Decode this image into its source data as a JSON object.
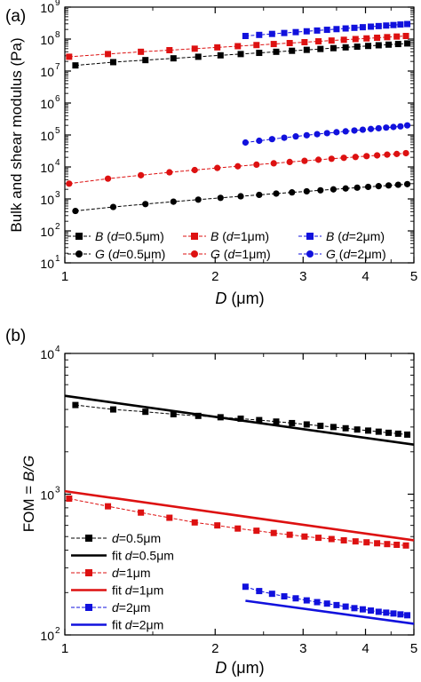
{
  "chart_data": [
    {
      "type": "scatter",
      "panel_label": "(a)",
      "xlabel": "D (μm)",
      "ylabel": "Bulk and shear modulus (Pa)",
      "xscale": "log",
      "yscale": "log",
      "xlim": [
        1,
        5
      ],
      "ylim": [
        10,
        1000000000
      ],
      "xticks": [
        1,
        2,
        3,
        4,
        5
      ],
      "xtick_labels": [
        "1",
        "2",
        "3",
        "4",
        "5"
      ],
      "yticks": [
        10,
        100,
        1000,
        10000,
        100000,
        1000000,
        10000000,
        100000000,
        1000000000
      ],
      "ytick_labels": [
        "10",
        "10",
        "10",
        "10",
        "10",
        "10",
        "10",
        "10",
        "10"
      ],
      "ytick_exponents": [
        "1",
        "2",
        "3",
        "4",
        "5",
        "6",
        "7",
        "8",
        "9"
      ],
      "grid": false,
      "legend_position": "bottom",
      "series": [
        {
          "name": "B (d=0.5μm)",
          "color": "#000000",
          "marker": "square",
          "x": [
            1.05,
            1.25,
            1.45,
            1.65,
            1.85,
            2.05,
            2.25,
            2.45,
            2.65,
            2.85,
            3.05,
            3.25,
            3.45,
            3.65,
            3.85,
            4.05,
            4.25,
            4.45,
            4.65,
            4.85
          ],
          "y": [
            15000000,
            19000000,
            22000000,
            25000000,
            28000000,
            31000000,
            34000000,
            37000000,
            40000000,
            43000000,
            46000000,
            49000000,
            52000000,
            55000000,
            58000000,
            61000000,
            64000000,
            67000000,
            70000000,
            73000000
          ]
        },
        {
          "name": "B (d=1μm)",
          "color": "#dd1111",
          "marker": "square",
          "x": [
            1.02,
            1.22,
            1.42,
            1.62,
            1.82,
            2.02,
            2.22,
            2.42,
            2.62,
            2.82,
            3.02,
            3.22,
            3.42,
            3.62,
            3.82,
            4.02,
            4.22,
            4.42,
            4.62,
            4.82
          ],
          "y": [
            28000000,
            34000000,
            40000000,
            45000000,
            50000000,
            55000000,
            60000000,
            65000000,
            70000000,
            75000000,
            80000000,
            85000000,
            90000000,
            95000000,
            100000000,
            105000000,
            110000000,
            115000000,
            120000000,
            125000000
          ]
        },
        {
          "name": "B (d=2μm)",
          "color": "#1111dd",
          "marker": "square",
          "x": [
            2.3,
            2.45,
            2.6,
            2.75,
            2.9,
            3.05,
            3.2,
            3.35,
            3.5,
            3.65,
            3.8,
            3.95,
            4.1,
            4.25,
            4.4,
            4.55,
            4.7,
            4.85
          ],
          "y": [
            125000000,
            135000000,
            145000000,
            155000000,
            165000000,
            175000000,
            185000000,
            195000000,
            205000000,
            215000000,
            225000000,
            235000000,
            245000000,
            255000000,
            265000000,
            275000000,
            285000000,
            295000000
          ]
        },
        {
          "name": "G (d=0.5μm)",
          "color": "#000000",
          "marker": "circle",
          "x": [
            1.05,
            1.25,
            1.45,
            1.65,
            1.85,
            2.05,
            2.25,
            2.45,
            2.65,
            2.85,
            3.05,
            3.25,
            3.45,
            3.65,
            3.85,
            4.05,
            4.25,
            4.45,
            4.65,
            4.85
          ],
          "y": [
            420,
            560,
            690,
            820,
            950,
            1080,
            1210,
            1340,
            1470,
            1600,
            1730,
            1860,
            1990,
            2120,
            2250,
            2380,
            2510,
            2640,
            2770,
            2900
          ]
        },
        {
          "name": "G (d=1μm)",
          "color": "#dd1111",
          "marker": "circle",
          "x": [
            1.02,
            1.22,
            1.42,
            1.62,
            1.82,
            2.02,
            2.22,
            2.42,
            2.62,
            2.82,
            3.02,
            3.22,
            3.42,
            3.62,
            3.82,
            4.02,
            4.22,
            4.42,
            4.62,
            4.82
          ],
          "y": [
            3000,
            4300,
            5500,
            6800,
            8000,
            9300,
            10500,
            11800,
            13000,
            14300,
            15500,
            16800,
            18000,
            19300,
            20500,
            21800,
            23000,
            24300,
            25500,
            27000
          ]
        },
        {
          "name": "G (d=2μm)",
          "color": "#1111dd",
          "marker": "circle",
          "x": [
            2.3,
            2.45,
            2.6,
            2.75,
            2.9,
            3.05,
            3.2,
            3.35,
            3.5,
            3.65,
            3.8,
            3.95,
            4.1,
            4.25,
            4.4,
            4.55,
            4.7,
            4.85
          ],
          "y": [
            58000,
            66000,
            74000,
            82000,
            90000,
            98000,
            106000,
            114000,
            122000,
            130000,
            138000,
            146000,
            154000,
            162000,
            170000,
            178000,
            186000,
            200000
          ]
        }
      ]
    },
    {
      "type": "line",
      "panel_label": "(b)",
      "xlabel": "D (μm)",
      "ylabel": "FOM = B/G",
      "xscale": "log",
      "yscale": "log",
      "xlim": [
        1,
        5
      ],
      "ylim": [
        100,
        10000
      ],
      "xticks": [
        1,
        2,
        3,
        4,
        5
      ],
      "xtick_labels": [
        "1",
        "2",
        "3",
        "4",
        "5"
      ],
      "yticks": [
        100,
        1000,
        10000
      ],
      "ytick_labels": [
        "10",
        "10",
        "10"
      ],
      "ytick_exponents": [
        "2",
        "3",
        "4"
      ],
      "grid": false,
      "legend_position": "bottom-left",
      "series": [
        {
          "name": "d=0.5μm",
          "color": "#000000",
          "marker": "square",
          "x": [
            1.05,
            1.25,
            1.45,
            1.65,
            1.85,
            2.05,
            2.25,
            2.45,
            2.65,
            2.85,
            3.05,
            3.25,
            3.45,
            3.65,
            3.85,
            4.05,
            4.25,
            4.45,
            4.65,
            4.85
          ],
          "y": [
            4300,
            4000,
            3850,
            3700,
            3600,
            3520,
            3440,
            3360,
            3280,
            3200,
            3130,
            3060,
            3000,
            2940,
            2880,
            2830,
            2780,
            2730,
            2690,
            2650
          ]
        },
        {
          "name": "fit d=0.5μm",
          "color": "#000000",
          "marker": "none",
          "x": [
            1,
            5
          ],
          "y": [
            5000,
            2250
          ]
        },
        {
          "name": "d=1μm",
          "color": "#dd1111",
          "marker": "square",
          "x": [
            1.02,
            1.22,
            1.42,
            1.62,
            1.82,
            2.02,
            2.22,
            2.42,
            2.62,
            2.82,
            3.02,
            3.22,
            3.42,
            3.62,
            3.82,
            4.02,
            4.22,
            4.42,
            4.62,
            4.82
          ],
          "y": [
            930,
            820,
            740,
            680,
            630,
            600,
            570,
            550,
            530,
            515,
            500,
            490,
            480,
            470,
            462,
            455,
            448,
            442,
            437,
            432
          ]
        },
        {
          "name": "fit d=1μm",
          "color": "#dd1111",
          "marker": "none",
          "x": [
            1,
            5
          ],
          "y": [
            1050,
            470
          ]
        },
        {
          "name": "d=2μm",
          "color": "#1111dd",
          "marker": "square",
          "x": [
            2.3,
            2.45,
            2.6,
            2.75,
            2.9,
            3.05,
            3.2,
            3.35,
            3.5,
            3.65,
            3.8,
            3.95,
            4.1,
            4.25,
            4.4,
            4.55,
            4.7,
            4.85
          ],
          "y": [
            220,
            205,
            196,
            188,
            182,
            176,
            171,
            167,
            163,
            159,
            155,
            152,
            149,
            146,
            144,
            142,
            140,
            138
          ]
        },
        {
          "name": "fit d=2μm",
          "color": "#1111dd",
          "marker": "none",
          "x": [
            2.3,
            5
          ],
          "y": [
            175,
            120
          ]
        }
      ]
    }
  ],
  "legend_a": [
    {
      "marker": "square",
      "color": "#000000",
      "sym": "B",
      "pre": " (",
      "italic": "d",
      "post": "=0.5μm)"
    },
    {
      "marker": "square",
      "color": "#dd1111",
      "sym": "B",
      "pre": " (",
      "italic": "d",
      "post": "=1μm)"
    },
    {
      "marker": "square",
      "color": "#1111dd",
      "sym": "B",
      "pre": " (",
      "italic": "d",
      "post": "=2μm)"
    },
    {
      "marker": "circle",
      "color": "#000000",
      "sym": "G",
      "pre": " (",
      "italic": "d",
      "post": "=0.5μm)"
    },
    {
      "marker": "circle",
      "color": "#dd1111",
      "sym": "G",
      "pre": " (",
      "italic": "d",
      "post": "=1μm)"
    },
    {
      "marker": "circle",
      "color": "#1111dd",
      "sym": "G",
      "pre": " (",
      "italic": "d",
      "post": "=2μm)"
    }
  ],
  "legend_b": [
    {
      "type": "marker",
      "color": "#000000",
      "pre": "",
      "italic": "d",
      "post": "=0.5μm"
    },
    {
      "type": "line",
      "color": "#000000",
      "pre": "fit ",
      "italic": "d",
      "post": "=0.5μm"
    },
    {
      "type": "marker",
      "color": "#dd1111",
      "pre": "",
      "italic": "d",
      "post": "=1μm"
    },
    {
      "type": "line",
      "color": "#dd1111",
      "pre": "fit ",
      "italic": "d",
      "post": "=1μm"
    },
    {
      "type": "marker",
      "color": "#1111dd",
      "pre": "",
      "italic": "d",
      "post": "=2μm"
    },
    {
      "type": "line",
      "color": "#1111dd",
      "pre": "fit ",
      "italic": "d",
      "post": "=2μm"
    }
  ],
  "labels": {
    "panel_a": "(a)",
    "panel_b": "(b)",
    "xlabel_italic": "D",
    "xlabel_rest": " (μm)",
    "ylabel_a": "Bulk and shear modulus (Pa)",
    "ylabel_b_pre": "FOM = ",
    "ylabel_b_italic": "B/G"
  }
}
